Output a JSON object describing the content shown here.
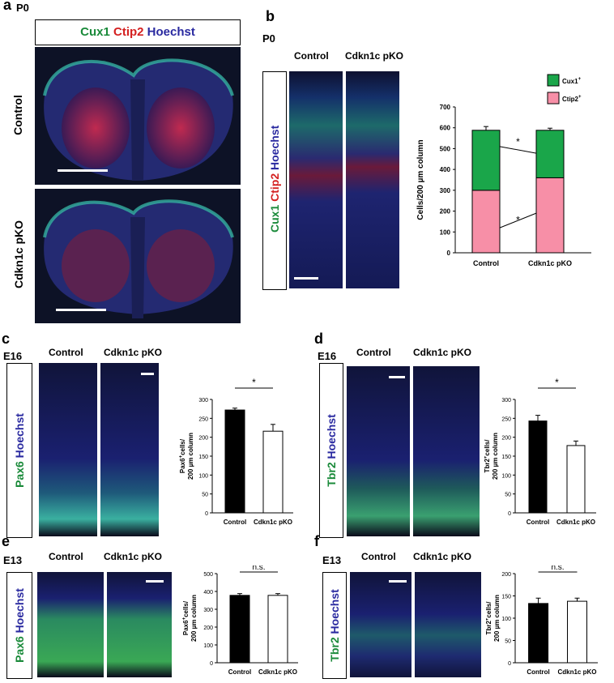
{
  "panel_a": {
    "letter": "a",
    "stage": "P0",
    "stain": {
      "cux1": "Cux1",
      "ctip2": "Ctip2",
      "hoechst": "Hoechst"
    },
    "row_labels": [
      "Control",
      "Cdkn1c pKO"
    ],
    "colors": {
      "cux1": "#1a8a3a",
      "ctip2": "#d42020",
      "hoechst": "#2a2aa0"
    }
  },
  "panel_b": {
    "letter": "b",
    "stage": "P0",
    "col_labels": [
      "Control",
      "Cdkn1c pKO"
    ],
    "stain": {
      "cux1": "Cux1",
      "ctip2": "Ctip2",
      "hoechst": "Hoechst"
    }
  },
  "panel_c": {
    "letter": "c",
    "stage": "E16",
    "col_labels": [
      "Control",
      "Cdkn1c pKO"
    ],
    "stain": {
      "marker": "Pax6",
      "hoechst": "Hoechst"
    }
  },
  "panel_d": {
    "letter": "d",
    "stage": "E16",
    "col_labels": [
      "Control",
      "Cdkn1c pKO"
    ],
    "stain": {
      "marker": "Tbr2",
      "hoechst": "Hoechst"
    }
  },
  "panel_e": {
    "letter": "e",
    "stage": "E13",
    "col_labels": [
      "Control",
      "Cdkn1c pKO"
    ],
    "stain": {
      "marker": "Pax6",
      "hoechst": "Hoechst"
    }
  },
  "panel_f": {
    "letter": "f",
    "stage": "E13",
    "col_labels": [
      "Control",
      "Cdkn1c pKO"
    ],
    "stain": {
      "marker": "Tbr2",
      "hoechst": "Hoechst"
    }
  },
  "chart_data": [
    {
      "id": "b",
      "type": "bar",
      "stacked": true,
      "categories": [
        "Control",
        "Cdkn1c pKO"
      ],
      "series": [
        {
          "name": "Ctip2+",
          "color": "#f78fa7",
          "values": [
            300,
            360
          ],
          "errors": [
            12,
            8
          ]
        },
        {
          "name": "Cux1+",
          "color": "#1aa64a",
          "values": [
            288,
            228
          ],
          "errors": [
            18,
            10
          ]
        }
      ],
      "ylabel": "Cells/200 µm column",
      "ylim": [
        0,
        700
      ],
      "yticks": [
        0,
        100,
        200,
        300,
        400,
        500,
        600,
        700
      ],
      "legend_labels": [
        "Cux1",
        "Ctip2"
      ],
      "legend_superscript": "+",
      "legend_position": "top-right",
      "annotation": "*"
    },
    {
      "id": "c",
      "type": "bar",
      "categories": [
        "Control",
        "Cdkn1c pKO"
      ],
      "values": [
        272,
        216
      ],
      "errors": [
        5,
        18
      ],
      "colors": [
        "#000000",
        "#ffffff"
      ],
      "ylabel": {
        "line1_pre": "Pax6",
        "sup": "+",
        "line1_post": "cells/",
        "line2": "200 µm column"
      },
      "ylim": [
        0,
        300
      ],
      "yticks": [
        0,
        50,
        100,
        150,
        200,
        250,
        300
      ],
      "annotation": "*"
    },
    {
      "id": "d",
      "type": "bar",
      "categories": [
        "Control",
        "Cdkn1c pKO"
      ],
      "values": [
        243,
        178
      ],
      "errors": [
        15,
        12
      ],
      "colors": [
        "#000000",
        "#ffffff"
      ],
      "ylabel": {
        "line1_pre": "Tbr2",
        "sup": "+",
        "line1_post": "cells/",
        "line2": "200 µm column"
      },
      "ylim": [
        0,
        300
      ],
      "yticks": [
        0,
        50,
        100,
        150,
        200,
        250,
        300
      ],
      "annotation": "*"
    },
    {
      "id": "e",
      "type": "bar",
      "categories": [
        "Control",
        "Cdkn1c pKO"
      ],
      "values": [
        378,
        378
      ],
      "errors": [
        10,
        10
      ],
      "colors": [
        "#000000",
        "#ffffff"
      ],
      "ylabel": {
        "line1_pre": "Pax6",
        "sup": "+",
        "line1_post": "cells/",
        "line2": "200 µm column"
      },
      "ylim": [
        0,
        500
      ],
      "yticks": [
        0,
        100,
        200,
        300,
        400,
        500
      ],
      "annotation": "n.s."
    },
    {
      "id": "f",
      "type": "bar",
      "categories": [
        "Control",
        "Cdkn1c pKO"
      ],
      "values": [
        133,
        138
      ],
      "errors": [
        12,
        7
      ],
      "colors": [
        "#000000",
        "#ffffff"
      ],
      "ylabel": {
        "line1_pre": "Tbr2",
        "sup": "+",
        "line1_post": "cells/",
        "line2": "200 µm column"
      },
      "ylim": [
        0,
        200
      ],
      "yticks": [
        0,
        50,
        100,
        150,
        200
      ],
      "annotation": "n.s."
    }
  ]
}
